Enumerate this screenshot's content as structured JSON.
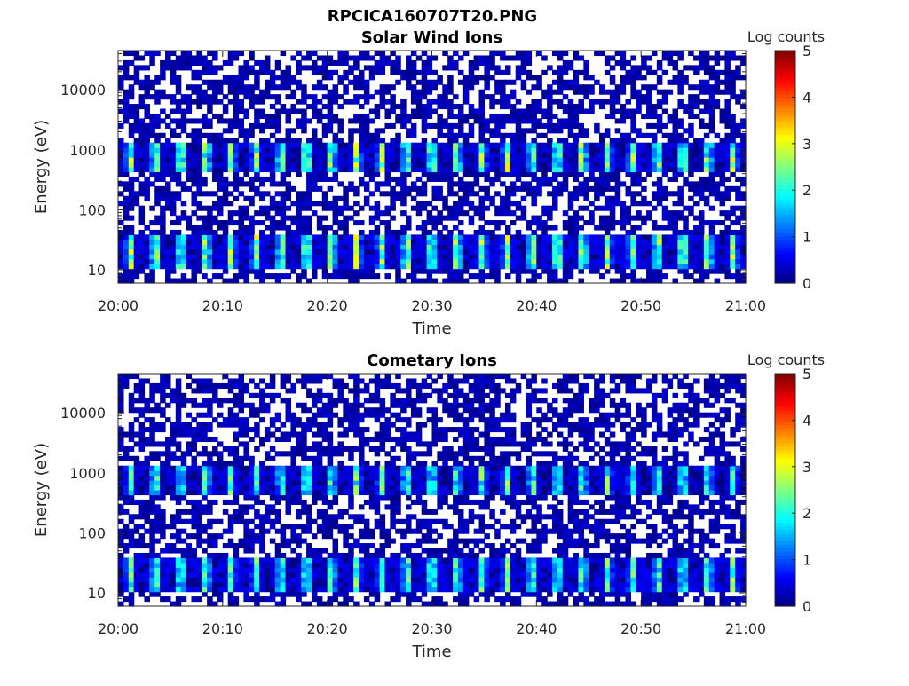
{
  "figure": {
    "title": "RPCICA160707T20.PNG"
  },
  "chart_data": [
    {
      "type": "heatmap",
      "title": "Solar Wind Ions",
      "xlabel": "Time",
      "ylabel": "Energy (eV)",
      "x_ticks": [
        "20:00",
        "20:10",
        "20:20",
        "20:30",
        "20:40",
        "20:50",
        "21:00"
      ],
      "xlim": [
        "20:00",
        "21:00"
      ],
      "y_scale": "log",
      "y_ticks": [
        "10",
        "100",
        "1000",
        "10000"
      ],
      "ylim": [
        6,
        45000
      ],
      "colorbar": {
        "label": "Log counts",
        "range": [
          0,
          5
        ],
        "ticks": [
          "0",
          "1",
          "2",
          "3",
          "4",
          "5"
        ],
        "colormap": "jet"
      },
      "grid": false,
      "pattern": {
        "sweep_period_min": 2.4,
        "peak_energy_low_eV": 20,
        "peak_energy_high_eV": 800,
        "peak_log_counts": 3.0
      }
    },
    {
      "type": "heatmap",
      "title": "Cometary Ions",
      "xlabel": "Time",
      "ylabel": "Energy (eV)",
      "x_ticks": [
        "20:00",
        "20:10",
        "20:20",
        "20:30",
        "20:40",
        "20:50",
        "21:00"
      ],
      "xlim": [
        "20:00",
        "21:00"
      ],
      "y_scale": "log",
      "y_ticks": [
        "10",
        "100",
        "1000",
        "10000"
      ],
      "ylim": [
        6,
        45000
      ],
      "colorbar": {
        "label": "Log counts",
        "range": [
          0,
          5
        ],
        "ticks": [
          "0",
          "1",
          "2",
          "3",
          "4",
          "5"
        ],
        "colormap": "jet"
      },
      "grid": false,
      "pattern": {
        "sweep_period_min": 2.4,
        "peak_energy_low_eV": 20,
        "peak_energy_high_eV": 800,
        "peak_log_counts": 2.6
      }
    }
  ]
}
